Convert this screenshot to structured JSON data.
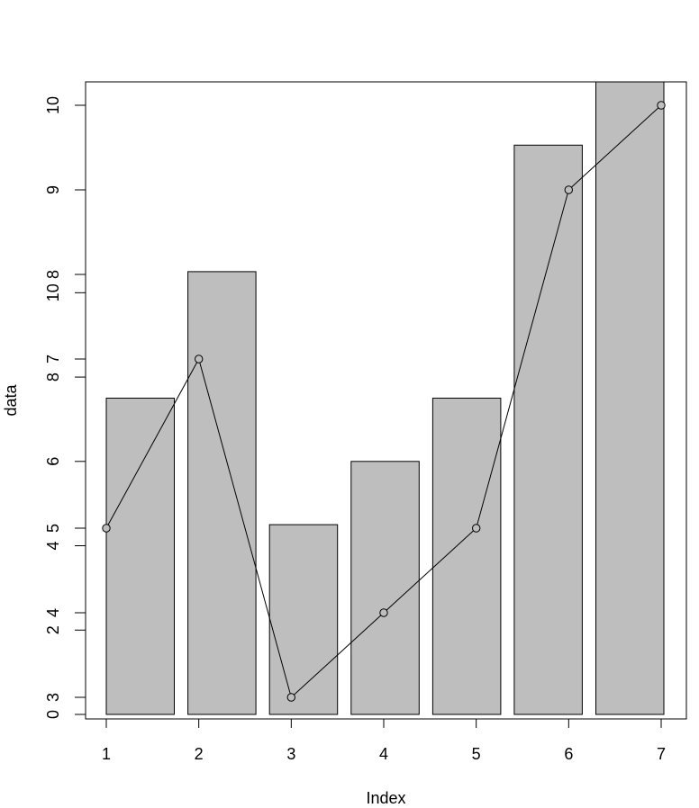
{
  "chart_data": {
    "type": "bar",
    "xlabel": "Index",
    "ylabel": "data",
    "grid": false,
    "legend": "none",
    "bars": {
      "scale_max": 15,
      "values": [
        7.5,
        10.5,
        4.5,
        6,
        7.5,
        13.5,
        15
      ],
      "fill": "#bebebe",
      "stroke": "#000000"
    },
    "line": {
      "x": [
        1,
        2,
        3,
        4,
        5,
        6,
        7
      ],
      "y": [
        5,
        7,
        3,
        4,
        5,
        9,
        10
      ],
      "marker": "open-circle",
      "color": "#000000"
    },
    "x_axis": {
      "ticks": [
        1,
        2,
        3,
        4,
        5,
        6,
        7
      ],
      "labels": [
        "1",
        "2",
        "3",
        "4",
        "5",
        "6",
        "7"
      ],
      "range": [
        0.8,
        7
      ]
    },
    "y_axis_line_scale": {
      "range": [
        2.8,
        10.3
      ],
      "ticks": [
        3,
        4,
        5,
        7,
        8,
        9,
        10
      ],
      "labels": [
        "3",
        "4",
        "5",
        "7",
        "8",
        "9",
        "10"
      ]
    },
    "y_axis_bar_scale": {
      "range": [
        0,
        15
      ],
      "ticks": [
        0,
        2,
        4,
        6,
        8,
        10
      ],
      "labels": [
        "0",
        "2",
        "4",
        "6",
        "8",
        "10"
      ]
    },
    "ylim_line": [
      2.8,
      10.3
    ],
    "ylim_bar": [
      0,
      15
    ]
  }
}
